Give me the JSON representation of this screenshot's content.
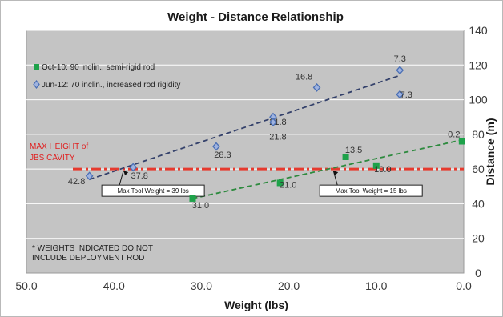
{
  "chart_data": {
    "type": "scatter",
    "title": "Weight - Distance Relationship",
    "xlabel": "Weight (lbs)",
    "ylabel": "Distance (m)",
    "xlim": [
      50,
      0
    ],
    "ylim": [
      0,
      140
    ],
    "x_ticks": [
      "50.0",
      "40.0",
      "30.0",
      "20.0",
      "10.0",
      "0.0"
    ],
    "y_ticks": [
      "0",
      "20",
      "40",
      "60",
      "80",
      "100",
      "120",
      "140"
    ],
    "grid": true,
    "legend_position": "top-left",
    "series": [
      {
        "name": "Oct-10: 90 inclin., semi-rigid rod",
        "marker": "square",
        "color": "#1ea24a",
        "points": [
          {
            "x": 31.0,
            "y": 43,
            "label": "31.0"
          },
          {
            "x": 21.0,
            "y": 52,
            "label": "21.0"
          },
          {
            "x": 13.5,
            "y": 67,
            "label": "13.5"
          },
          {
            "x": 10.0,
            "y": 62,
            "label": "10.0"
          },
          {
            "x": 0.2,
            "y": 76,
            "label": "0.2"
          }
        ],
        "trend": {
          "from": {
            "x": 31.0,
            "y": 43
          },
          "to": {
            "x": 0.0,
            "y": 77
          }
        }
      },
      {
        "name": "Jun-12: 70 inclin., increased rod rigidity",
        "marker": "diamond",
        "color": "#4a6fb5",
        "points": [
          {
            "x": 42.8,
            "y": 56,
            "label": "42.8"
          },
          {
            "x": 37.8,
            "y": 61,
            "label": "37.8"
          },
          {
            "x": 28.3,
            "y": 73,
            "label": "28.3"
          },
          {
            "x": 21.8,
            "y": 90,
            "label": "21.8"
          },
          {
            "x": 21.8,
            "y": 87,
            "label": "21.8"
          },
          {
            "x": 16.8,
            "y": 107,
            "label": "16.8"
          },
          {
            "x": 7.3,
            "y": 117,
            "label": "7.3"
          },
          {
            "x": 7.3,
            "y": 103,
            "label": "7.3"
          }
        ],
        "trend": {
          "from": {
            "x": 42.8,
            "y": 54
          },
          "to": {
            "x": 7.3,
            "y": 114
          }
        }
      }
    ],
    "reference_line": {
      "y": 60,
      "label_lines": [
        "MAX HEIGHT of",
        "JBS CAVITY"
      ],
      "color": "#e63a2e"
    },
    "callouts": [
      {
        "text": "Max Tool Weight = 39 lbs",
        "point": {
          "x": 39,
          "y": 60
        }
      },
      {
        "text": "Max Tool Weight = 15 lbs",
        "point": {
          "x": 15,
          "y": 60
        }
      }
    ],
    "note_lines": [
      "* WEIGHTS INDICATED DO NOT",
      "INCLUDE DEPLOYMENT ROD"
    ]
  }
}
